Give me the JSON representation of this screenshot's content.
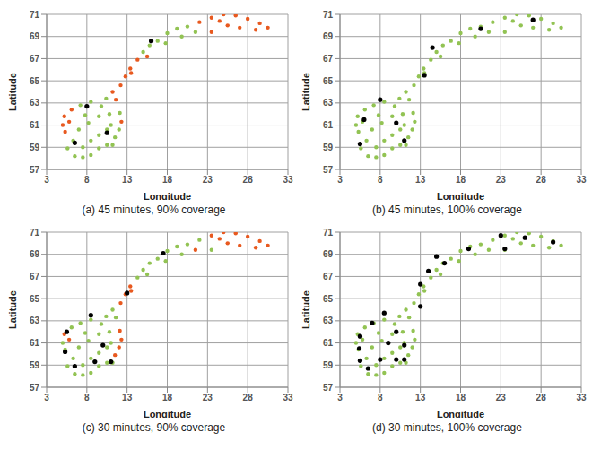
{
  "chart_data": [
    {
      "type": "scatter",
      "title": "(a) 45 minutes, 90% coverage",
      "xlabel": "Longitude",
      "ylabel": "Latitude",
      "xlim": [
        3,
        33
      ],
      "xticks": [
        3,
        8,
        13,
        18,
        23,
        28,
        33
      ],
      "ylim": [
        57,
        71
      ],
      "yticks": [
        57,
        59,
        61,
        63,
        65,
        67,
        69,
        71
      ],
      "grid": true,
      "series": [
        {
          "color": "#92c353",
          "marker": "point",
          "x": [
            5.6,
            6.5,
            7.5,
            8.5,
            9.5,
            10.5,
            11.2,
            11.5,
            12.0,
            12.1,
            7.5,
            8.5,
            9.5,
            10.5,
            6.3,
            7.2,
            8.5,
            10.4,
            15.0,
            15.8,
            16.8,
            18.0,
            19.2,
            20.5,
            21.5,
            19.8,
            17.8,
            7.0,
            8.2,
            9.5,
            10.8,
            7.8,
            9.8,
            11.0
          ],
          "y": [
            58.9,
            58.2,
            58.1,
            58.3,
            58.9,
            59.2,
            59.2,
            59.9,
            60.6,
            62.1,
            59.0,
            59.6,
            60.1,
            60.6,
            59.6,
            62.8,
            63.1,
            63.4,
            67.6,
            68.2,
            68.6,
            69.3,
            69.7,
            69.9,
            69.4,
            69.0,
            68.4,
            60.6,
            61.2,
            61.8,
            62.0,
            61.9,
            62.7,
            61.0
          ]
        },
        {
          "color": "#e8591f",
          "marker": "point",
          "x": [
            12.3,
            5.3,
            5.0,
            5.2,
            6.1,
            5.8,
            11.2,
            12.2,
            12.8,
            13.4,
            14.3,
            11.6,
            13.5,
            15.5,
            22.0,
            23.5,
            25.0,
            26.5,
            28.0,
            29.5,
            30.5,
            25.5,
            23.5,
            27.0,
            29.0,
            24.5
          ],
          "y": [
            61.3,
            60.4,
            61.0,
            61.8,
            62.4,
            61.3,
            64.0,
            64.6,
            65.4,
            66.1,
            66.9,
            63.3,
            65.7,
            67.2,
            70.3,
            70.7,
            71.0,
            70.9,
            70.6,
            70.2,
            69.8,
            70.0,
            69.4,
            69.8,
            69.6,
            70.4
          ]
        },
        {
          "color": "#000000",
          "marker": "circle",
          "x": [
            8.0,
            6.5,
            10.5,
            16.0
          ],
          "y": [
            62.7,
            59.4,
            60.3,
            68.6
          ]
        }
      ]
    },
    {
      "type": "scatter",
      "title": "(b) 45 minutes, 100% coverage",
      "xlabel": "Longitude",
      "ylabel": "Latitude",
      "xlim": [
        3,
        33
      ],
      "xticks": [
        3,
        8,
        13,
        18,
        23,
        28,
        33
      ],
      "ylim": [
        57,
        71
      ],
      "yticks": [
        57,
        59,
        61,
        63,
        65,
        67,
        69,
        71
      ],
      "grid": true,
      "series": [
        {
          "color": "#92c353",
          "marker": "point",
          "x": [
            5.6,
            6.5,
            7.5,
            8.5,
            9.5,
            10.5,
            11.2,
            11.5,
            12.0,
            12.3,
            12.1,
            7.5,
            8.5,
            9.5,
            10.5,
            6.3,
            5.3,
            5.0,
            5.2,
            6.1,
            7.2,
            8.5,
            10.4,
            11.2,
            12.2,
            12.8,
            13.4,
            14.3,
            15.0,
            15.8,
            16.8,
            18.0,
            19.2,
            20.5,
            22.0,
            23.5,
            25.0,
            26.5,
            28.0,
            29.5,
            30.5,
            25.5,
            23.5,
            21.5,
            19.8,
            17.8,
            7.0,
            8.2,
            9.5,
            10.8,
            7.8,
            9.8,
            11.6,
            13.5,
            15.5,
            27.0,
            29.0,
            24.5,
            5.8,
            11.0
          ],
          "y": [
            58.9,
            58.2,
            58.1,
            58.3,
            58.9,
            59.2,
            59.2,
            59.9,
            60.6,
            61.3,
            62.1,
            59.0,
            59.6,
            60.1,
            60.6,
            59.6,
            60.4,
            61.0,
            61.8,
            62.4,
            62.8,
            63.1,
            63.4,
            64.0,
            64.6,
            65.4,
            66.1,
            66.9,
            67.6,
            68.2,
            68.6,
            69.3,
            69.7,
            69.9,
            70.3,
            70.7,
            71.0,
            70.9,
            70.6,
            70.2,
            69.8,
            70.0,
            69.4,
            69.4,
            69.0,
            68.4,
            60.6,
            61.2,
            61.8,
            62.0,
            61.9,
            62.7,
            63.3,
            65.7,
            67.2,
            69.8,
            69.6,
            70.4,
            61.3,
            61.0
          ]
        },
        {
          "color": "#000000",
          "marker": "circle",
          "x": [
            6.0,
            5.5,
            8.0,
            10.0,
            11.0,
            13.5,
            14.5,
            20.5,
            27.0
          ],
          "y": [
            61.5,
            59.3,
            63.3,
            61.2,
            59.6,
            65.5,
            68.0,
            69.7,
            70.5
          ]
        }
      ]
    },
    {
      "type": "scatter",
      "title": "(c) 30 minutes, 90% coverage",
      "xlabel": "Longitude",
      "ylabel": "Latitude",
      "xlim": [
        3,
        33
      ],
      "xticks": [
        3,
        8,
        13,
        18,
        23,
        28,
        33
      ],
      "ylim": [
        57,
        71
      ],
      "yticks": [
        57,
        59,
        61,
        63,
        65,
        67,
        69,
        71
      ],
      "grid": true,
      "series": [
        {
          "color": "#92c353",
          "marker": "point",
          "x": [
            5.6,
            6.5,
            7.5,
            8.5,
            9.5,
            10.5,
            11.2,
            7.5,
            8.5,
            9.5,
            10.5,
            6.3,
            5.3,
            5.0,
            6.1,
            7.2,
            8.5,
            10.4,
            11.2,
            14.3,
            15.0,
            15.8,
            16.8,
            18.0,
            19.2,
            20.5,
            22.0,
            23.5,
            19.8,
            17.8,
            7.0,
            8.2,
            9.5,
            10.8,
            7.8,
            9.8,
            11.6,
            15.5,
            11.0
          ],
          "y": [
            58.9,
            58.2,
            58.1,
            58.3,
            58.9,
            59.2,
            59.2,
            59.0,
            59.6,
            60.1,
            60.6,
            59.6,
            60.4,
            61.0,
            62.4,
            62.8,
            63.1,
            63.4,
            64.0,
            66.9,
            67.6,
            68.2,
            68.6,
            69.3,
            69.7,
            69.9,
            70.3,
            69.4,
            69.0,
            68.4,
            60.6,
            61.2,
            61.8,
            62.0,
            61.9,
            62.7,
            63.3,
            67.2,
            61.0
          ]
        },
        {
          "color": "#e8591f",
          "marker": "point",
          "x": [
            11.5,
            12.0,
            12.3,
            12.1,
            5.2,
            5.8,
            12.2,
            12.8,
            13.4,
            13.5,
            21.5,
            23.5,
            25.0,
            26.5,
            28.0,
            29.5,
            30.5,
            25.5,
            27.0,
            29.0,
            24.5
          ],
          "y": [
            59.9,
            60.6,
            61.3,
            62.1,
            61.8,
            61.3,
            64.6,
            65.4,
            66.1,
            65.7,
            69.4,
            70.7,
            71.0,
            70.9,
            70.6,
            70.2,
            69.8,
            70.0,
            69.8,
            69.6,
            70.4
          ]
        },
        {
          "color": "#000000",
          "marker": "circle",
          "x": [
            5.5,
            5.3,
            6.5,
            8.5,
            10.0,
            11.0,
            9.0,
            13.0,
            17.5
          ],
          "y": [
            62.0,
            60.2,
            58.9,
            63.5,
            60.8,
            59.3,
            59.3,
            65.5,
            69.1
          ]
        }
      ]
    },
    {
      "type": "scatter",
      "title": "(d) 30 minutes, 100% coverage",
      "xlabel": "Longitude",
      "ylabel": "Latitude",
      "xlim": [
        3,
        33
      ],
      "xticks": [
        3,
        8,
        13,
        18,
        23,
        28,
        33
      ],
      "ylim": [
        57,
        71
      ],
      "yticks": [
        57,
        59,
        61,
        63,
        65,
        67,
        69,
        71
      ],
      "grid": true,
      "series": [
        {
          "color": "#92c353",
          "marker": "point",
          "x": [
            5.6,
            6.5,
            7.5,
            8.5,
            9.5,
            10.5,
            11.2,
            11.5,
            12.0,
            12.3,
            12.1,
            7.5,
            8.5,
            9.5,
            10.5,
            6.3,
            5.3,
            5.0,
            5.2,
            6.1,
            7.2,
            8.5,
            10.4,
            11.2,
            12.2,
            12.8,
            13.4,
            14.3,
            15.0,
            15.8,
            16.8,
            18.0,
            19.2,
            20.5,
            22.0,
            23.5,
            25.0,
            26.5,
            28.0,
            29.5,
            30.5,
            25.5,
            23.5,
            21.5,
            19.8,
            17.8,
            7.0,
            8.2,
            9.5,
            10.8,
            7.8,
            9.8,
            11.6,
            13.5,
            15.5,
            27.0,
            29.0,
            24.5,
            5.8,
            11.0
          ],
          "y": [
            58.9,
            58.2,
            58.1,
            58.3,
            58.9,
            59.2,
            59.2,
            59.9,
            60.6,
            61.3,
            62.1,
            59.0,
            59.6,
            60.1,
            60.6,
            59.6,
            60.4,
            61.0,
            61.8,
            62.4,
            62.8,
            63.1,
            63.4,
            64.0,
            64.6,
            65.4,
            66.1,
            66.9,
            67.6,
            68.2,
            68.6,
            69.3,
            69.7,
            69.9,
            70.3,
            70.7,
            71.0,
            70.9,
            70.6,
            70.2,
            69.8,
            70.0,
            69.4,
            69.4,
            69.0,
            68.4,
            60.6,
            61.2,
            61.8,
            62.0,
            61.9,
            62.7,
            63.3,
            65.7,
            67.2,
            69.8,
            69.6,
            70.4,
            61.3,
            61.0
          ]
        },
        {
          "color": "#000000",
          "marker": "circle",
          "x": [
            5.5,
            5.4,
            5.5,
            6.5,
            7.0,
            8.5,
            10.0,
            9.0,
            11.0,
            10.0,
            11.0,
            8.0,
            13.0,
            13.0,
            14.0,
            15.0,
            16.0,
            19.0,
            23.0,
            23.5,
            26.0,
            29.5
          ],
          "y": [
            61.6,
            60.5,
            59.4,
            58.7,
            62.8,
            63.7,
            62.0,
            61.0,
            60.8,
            59.5,
            59.5,
            59.5,
            64.3,
            66.3,
            67.5,
            68.8,
            68.2,
            69.5,
            70.7,
            69.5,
            70.5,
            70.1
          ]
        }
      ]
    }
  ]
}
